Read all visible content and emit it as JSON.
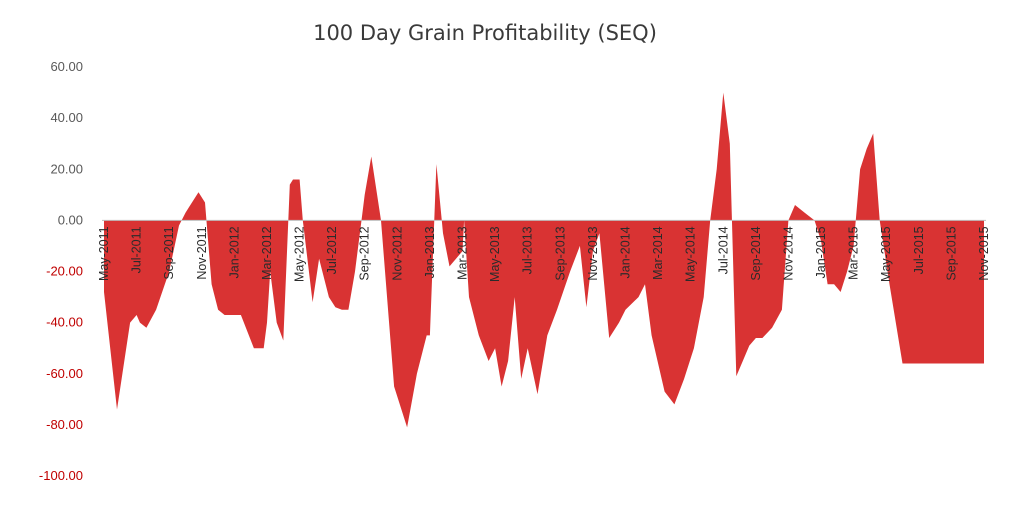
{
  "chart_data": {
    "type": "area",
    "title": "100 Day Grain Profitability (SEQ)",
    "xlabel": "",
    "ylabel": "",
    "ylim": [
      -100,
      60
    ],
    "yticks": [
      "60.00",
      "40.00",
      "20.00",
      "0.00",
      "-20.00",
      "-40.00",
      "-60.00",
      "-80.00",
      "-100.00"
    ],
    "ytick_values": [
      60,
      40,
      20,
      0,
      -20,
      -40,
      -60,
      -80,
      -100
    ],
    "x_tick_labels": [
      "May-2011",
      "Jul-2011",
      "Sep-2011",
      "Nov-2011",
      "Jan-2012",
      "Mar-2012",
      "May-2012",
      "Jul-2012",
      "Sep-2012",
      "Nov-2012",
      "Jan-2013",
      "Mar-2013",
      "May-2013",
      "Jul-2013",
      "Sep-2013",
      "Nov-2013",
      "Jan-2014",
      "Mar-2014",
      "May-2014",
      "Jul-2014",
      "Sep-2014",
      "Nov-2014",
      "Jan-2015",
      "Mar-2015",
      "May-2015",
      "Jul-2015",
      "Sep-2015",
      "Nov-2015"
    ],
    "grid": false,
    "legend": "none",
    "colors": {
      "fill": "#D93333",
      "positive_tick_text": "#595959",
      "negative_tick_text": "#C00000",
      "zero_line": "#bfbfbf"
    },
    "series": [
      {
        "x": [
          0,
          0.4,
          0.8,
          1.0,
          1.1,
          1.3,
          1.6,
          2.0,
          2.3,
          2.5,
          2.6,
          2.9,
          3.1,
          3.3,
          3.5,
          3.7,
          3.8,
          3.9,
          4.2,
          4.6,
          4.9,
          5.0,
          5.1,
          5.3,
          5.5,
          5.7,
          5.8,
          6.0,
          6.1,
          6.4,
          6.6,
          6.9,
          7.1,
          7.3,
          7.5,
          7.7,
          7.9,
          8.0,
          8.2,
          8.5,
          8.9,
          9.3,
          9.6,
          9.9,
          10.0,
          10.2,
          10.4,
          10.6,
          10.8,
          11.0,
          11.05,
          11.2,
          11.5,
          11.8,
          12.0,
          12.2,
          12.4,
          12.6,
          12.8,
          13.0,
          13.3,
          13.6,
          13.9,
          14.3,
          14.6,
          14.8,
          15.0,
          15.2,
          15.5,
          15.8,
          16.0,
          16.4,
          16.6,
          16.8,
          17.2,
          17.5,
          17.8,
          18.1,
          18.4,
          18.6,
          18.8,
          19.0,
          19.2,
          19.4,
          19.6,
          19.8,
          20.0,
          20.2,
          20.5,
          20.8,
          21.0,
          21.2,
          21.5,
          21.8,
          22.0,
          22.2,
          22.4,
          22.6,
          22.8,
          23.0,
          23.2,
          23.4,
          23.6,
          23.8,
          24.1,
          24.5,
          24.9,
          25.2,
          25.5,
          25.8,
          26.0,
          26.2,
          26.5,
          26.7,
          26.9,
          27.0
        ],
        "y": [
          -28,
          -74,
          -40,
          -37,
          -40,
          -42,
          -35,
          -20,
          -2,
          3,
          5,
          11,
          7,
          -25,
          -35,
          -37,
          -37,
          -37,
          -37,
          -50,
          -50,
          -40,
          -20,
          -40,
          -47,
          14,
          16,
          16,
          0,
          -32,
          -15,
          -30,
          -34,
          -35,
          -35,
          -20,
          0,
          10,
          25,
          0,
          -65,
          -81,
          -60,
          -45,
          -45,
          22,
          -5,
          -18,
          -15,
          -12,
          0,
          -30,
          -45,
          -55,
          -50,
          -65,
          -55,
          -30,
          -62,
          -50,
          -68,
          -45,
          -35,
          -20,
          -10,
          -34,
          -12,
          -5,
          -46,
          -40,
          -35,
          -30,
          -25,
          -45,
          -67,
          -72,
          -62,
          -50,
          -30,
          0,
          20,
          50,
          30,
          -61,
          -55,
          -49,
          -46,
          -46,
          -42,
          -35,
          0,
          6,
          3,
          0,
          -8,
          -25,
          -25,
          -28,
          -20,
          -10,
          20,
          28,
          34,
          0,
          -25,
          -56,
          -56,
          -56,
          -56,
          -56,
          -56,
          -56,
          -56,
          -56,
          -56,
          -56
        ]
      }
    ]
  }
}
